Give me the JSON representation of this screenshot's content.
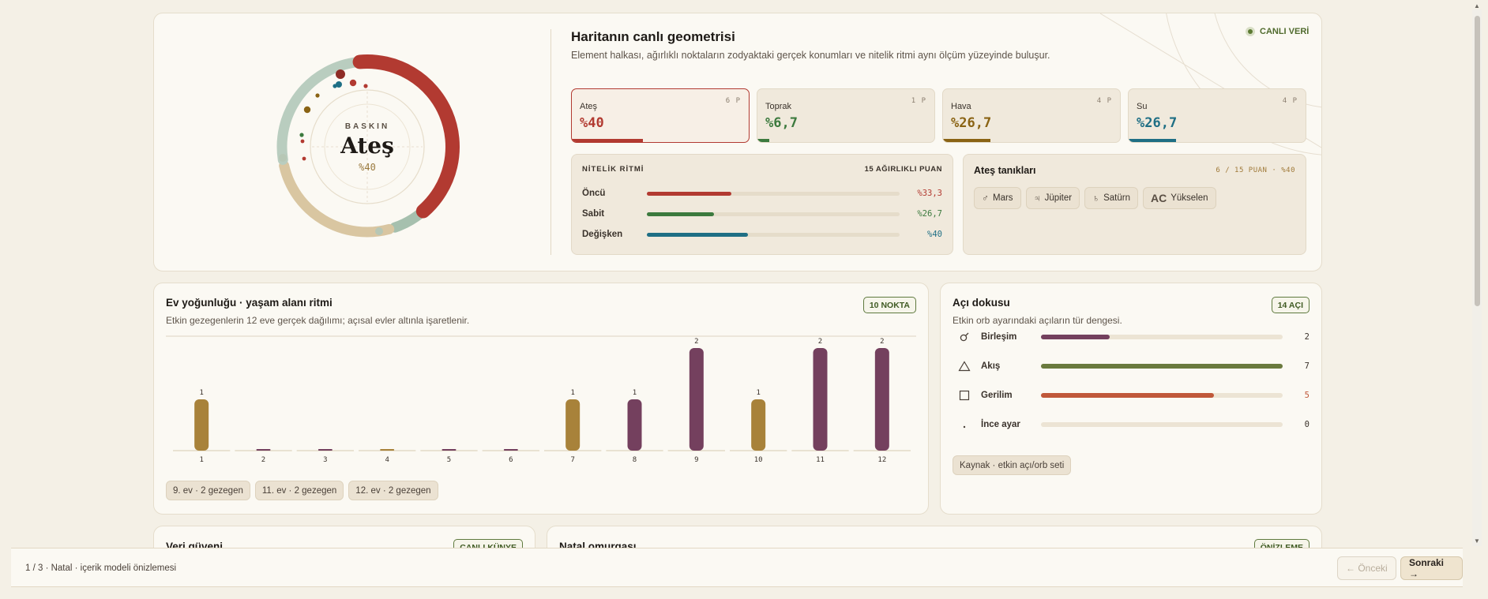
{
  "hero": {
    "dominant_eyebrow": "BASKIN",
    "dominant_name": "Ateş",
    "dominant_pct": "%40",
    "title": "Haritanın canlı geometrisi",
    "description": "Element halkası, ağırlıklı noktaların zodyaktaki gerçek konumları ve nitelik ritmi aynı ölçüm yüzeyinde buluşur.",
    "live_label": "CANLI VERİ",
    "ring_shares": [
      {
        "element": "Ateş",
        "share": 0.4,
        "color": "#b23a31"
      },
      {
        "element": "Toprak",
        "share": 0.067,
        "color": "#a6c0ae"
      },
      {
        "element": "Hava",
        "share": 0.267,
        "color": "#d9c6a1"
      },
      {
        "element": "Su",
        "share": 0.267,
        "color": "#b9cdbf"
      }
    ]
  },
  "elements": [
    {
      "name": "Ateş",
      "count": "6 P",
      "pct": "%40",
      "value": 0.4,
      "color": "#b23a31",
      "active": true
    },
    {
      "name": "Toprak",
      "count": "1 P",
      "pct": "%6,7",
      "value": 0.067,
      "color": "#3c7a3e",
      "active": false
    },
    {
      "name": "Hava",
      "count": "4 P",
      "pct": "%26,7",
      "value": 0.267,
      "color": "#8a6314",
      "active": false
    },
    {
      "name": "Su",
      "count": "4 P",
      "pct": "%26,7",
      "value": 0.267,
      "color": "#1f6f85",
      "active": false
    }
  ],
  "quality": {
    "title": "NİTELİK RİTMİ",
    "meta": "15 AĞIRLIKLI PUAN",
    "rows": [
      {
        "label": "Öncü",
        "pct": "%33,3",
        "value": 0.333,
        "color": "#b23a31"
      },
      {
        "label": "Sabit",
        "pct": "%26,7",
        "value": 0.267,
        "color": "#3c7a3e"
      },
      {
        "label": "Değişken",
        "pct": "%40",
        "value": 0.4,
        "color": "#1f6f85"
      }
    ]
  },
  "witnesses": {
    "title": "Ateş tanıkları",
    "meta": "6 / 15 PUAN · %40",
    "chips": [
      {
        "glyph": "♂",
        "label": "Mars"
      },
      {
        "glyph": "♃",
        "label": "Jüpiter"
      },
      {
        "glyph": "♄",
        "label": "Satürn"
      },
      {
        "glyph": "AC",
        "label": "Yükselen"
      }
    ]
  },
  "houses": {
    "title": "Ev yoğunluğu · yaşam alanı ritmi",
    "description": "Etkin gezegenlerin 12 eve gerçek dağılımı; açısal evler altınla işaretlenir.",
    "badge": "10 NOKTA",
    "tags": [
      "9. ev · 2 gezegen",
      "11. ev · 2 gezegen",
      "12. ev · 2 gezegen"
    ]
  },
  "chart_data": {
    "type": "bar",
    "categories": [
      "1",
      "2",
      "3",
      "4",
      "5",
      "6",
      "7",
      "8",
      "9",
      "10",
      "11",
      "12"
    ],
    "values": [
      1,
      0,
      0,
      0,
      0,
      0,
      1,
      1,
      2,
      1,
      2,
      2
    ],
    "angular_houses": [
      "1",
      "4",
      "7",
      "10"
    ],
    "colors": {
      "angular": "#a8823a",
      "other": "#74405e"
    },
    "ylim": [
      0,
      2
    ]
  },
  "aspects": {
    "title": "Açı dokusu",
    "description": "Etkin orb ayarındaki açıların tür dengesi.",
    "badge": "14 AÇI",
    "rows": [
      {
        "icon": "conjunction-icon",
        "label": "Birleşim",
        "count": "2",
        "value": 2,
        "color": "#74405e",
        "val_color": "#3a322b"
      },
      {
        "icon": "trine-icon",
        "label": "Akış",
        "count": "7",
        "value": 7,
        "color": "#6a7a3e",
        "val_color": "#3a322b"
      },
      {
        "icon": "square-icon",
        "label": "Gerilim",
        "count": "5",
        "value": 5,
        "color": "#c0583a",
        "val_color": "#c0583a"
      },
      {
        "icon": "minor-dot-icon",
        "label": "İnce ayar",
        "count": "0",
        "value": 0,
        "color": "#74405e",
        "val_color": "#3a322b"
      }
    ],
    "max": 7,
    "source_label": "Kaynak · etkin açı/orb seti"
  },
  "peek": {
    "trust_title": "Veri güveni",
    "trust_badge": "CANLI KÜNYE",
    "spine_title": "Natal omurgası",
    "spine_badge": "ÖNİZLEME"
  },
  "footer": {
    "text": "1 / 3 · Natal · içerik modeli önizlemesi",
    "prev_label": "← Önceki",
    "next_label": "Sonraki →"
  }
}
